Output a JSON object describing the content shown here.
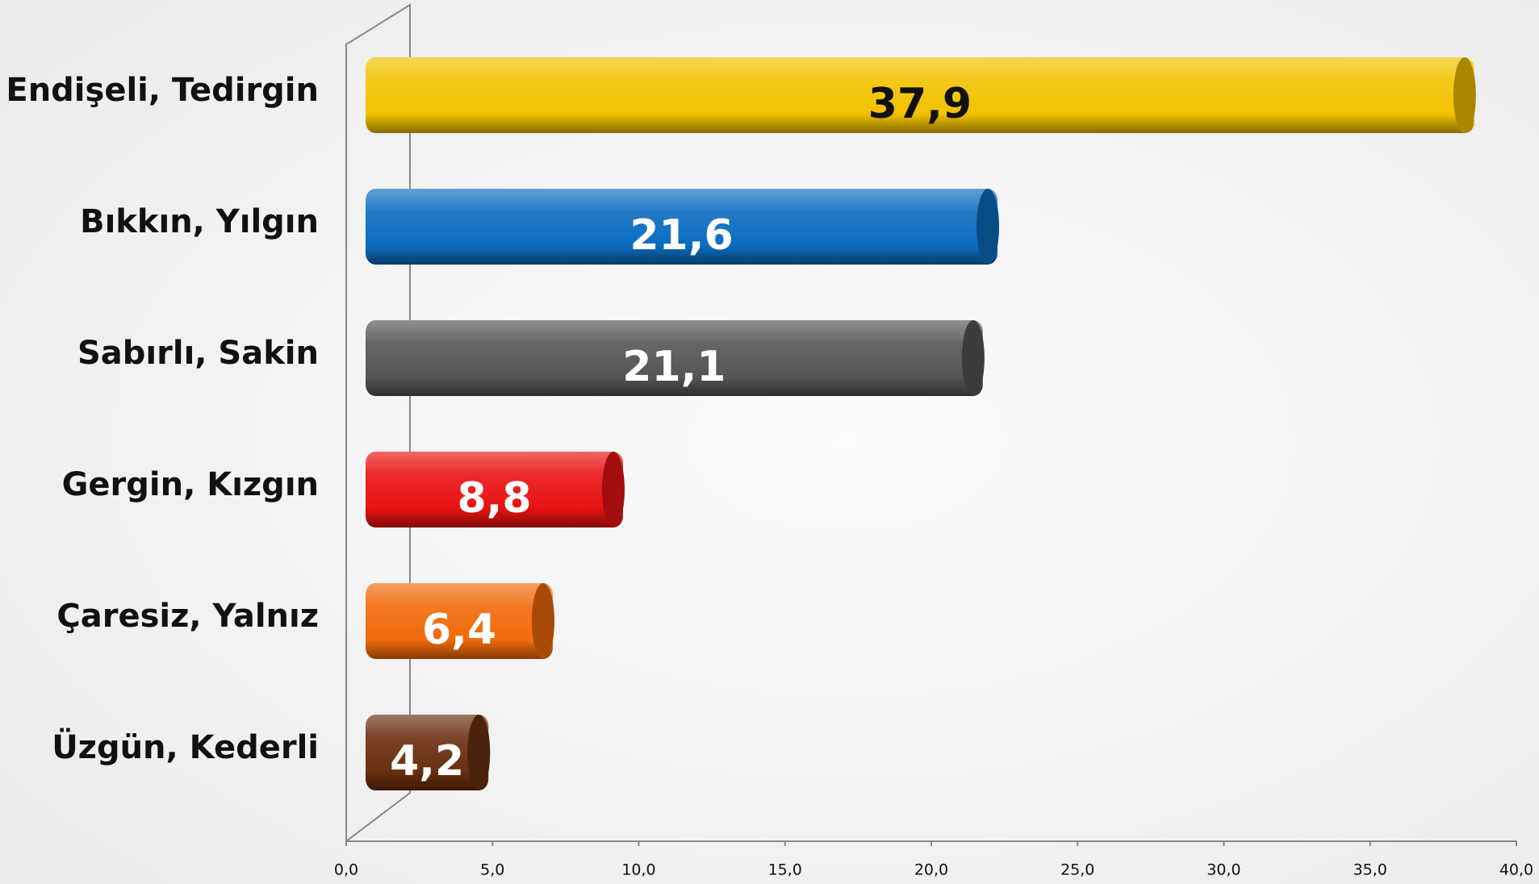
{
  "chart_data": {
    "type": "bar",
    "orientation": "horizontal",
    "categories": [
      "Endişeli, Tedirgin",
      "Bıkkın, Yılgın",
      "Sabırlı, Sakin",
      "Gergin, Kızgın",
      "Çaresiz, Yalnız",
      "Üzgün, Kederli"
    ],
    "values": [
      37.9,
      21.6,
      21.1,
      8.8,
      6.4,
      4.2
    ],
    "value_labels": [
      "37,9",
      "21,6",
      "21,1",
      "8,8",
      "6,4",
      "4,2"
    ],
    "colors": [
      "#f2c200",
      "#0b6cc0",
      "#555555",
      "#e81212",
      "#f06a0a",
      "#6a2f10"
    ],
    "value_label_colors": [
      "#111111",
      "#ffffff",
      "#ffffff",
      "#ffffff",
      "#ffffff",
      "#ffffff"
    ],
    "xlim": [
      0,
      40
    ],
    "xticks": [
      {
        "value": 0,
        "label": "0,0"
      },
      {
        "value": 5,
        "label": "5,0"
      },
      {
        "value": 10,
        "label": "10,0"
      },
      {
        "value": 15,
        "label": "15,0"
      },
      {
        "value": 20,
        "label": "20,0"
      },
      {
        "value": 25,
        "label": "25,0"
      },
      {
        "value": 30,
        "label": "30,0"
      },
      {
        "value": 35,
        "label": "35,0"
      },
      {
        "value": 40,
        "label": "40,0"
      }
    ],
    "grid": false
  }
}
